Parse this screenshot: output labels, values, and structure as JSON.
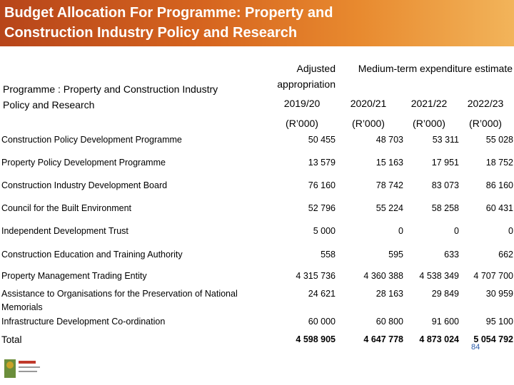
{
  "header": {
    "title": "Budget Allocation For Programme:  Property and Construction Industry Policy and Research"
  },
  "table": {
    "programme_header": "Programme : Property and Construction Industry Policy and Research",
    "adjusted_header": "Adjusted appropriation",
    "medium_header": "Medium-term expenditure estimate",
    "years": [
      "2019/20",
      "2020/21",
      "2021/22",
      "2022/23"
    ],
    "units": [
      "(R’000)",
      "(R’000)",
      "(R’000)",
      "(R’000)"
    ],
    "rows": [
      [
        "Construction Policy Development Programme",
        "50 455",
        "48 703",
        "53 311",
        "55 028"
      ],
      [
        "Property Policy Development Programme",
        "13 579",
        "15 163",
        "17 951",
        "18 752"
      ],
      [
        "Construction Industry Development Board",
        "76 160",
        "78 742",
        "83 073",
        "86 160"
      ],
      [
        "Council for the Built Environment",
        "52 796",
        "55 224",
        "58 258",
        "60 431"
      ],
      [
        "Independent Development Trust",
        "5 000",
        "0",
        "0",
        "0"
      ],
      [
        "Construction Education and Training Authority",
        "558",
        "595",
        "633",
        "662"
      ],
      [
        "Property Management Trading Entity",
        "4 315 736",
        "4 360 388",
        "4 538 349",
        "4 707 700"
      ],
      [
        "Assistance to Organisations for the Preservation of National Memorials",
        "24 621",
        "28 163",
        "29 849",
        "30 959"
      ],
      [
        "Infrastructure Development Co-ordination",
        "60 000",
        "60 800",
        "91 600",
        "95 100"
      ],
      [
        "Total",
        "4 598 905",
        "4 647 778",
        "4 873 024",
        "5 054 792"
      ]
    ]
  },
  "footer": {
    "page_number": "84"
  }
}
